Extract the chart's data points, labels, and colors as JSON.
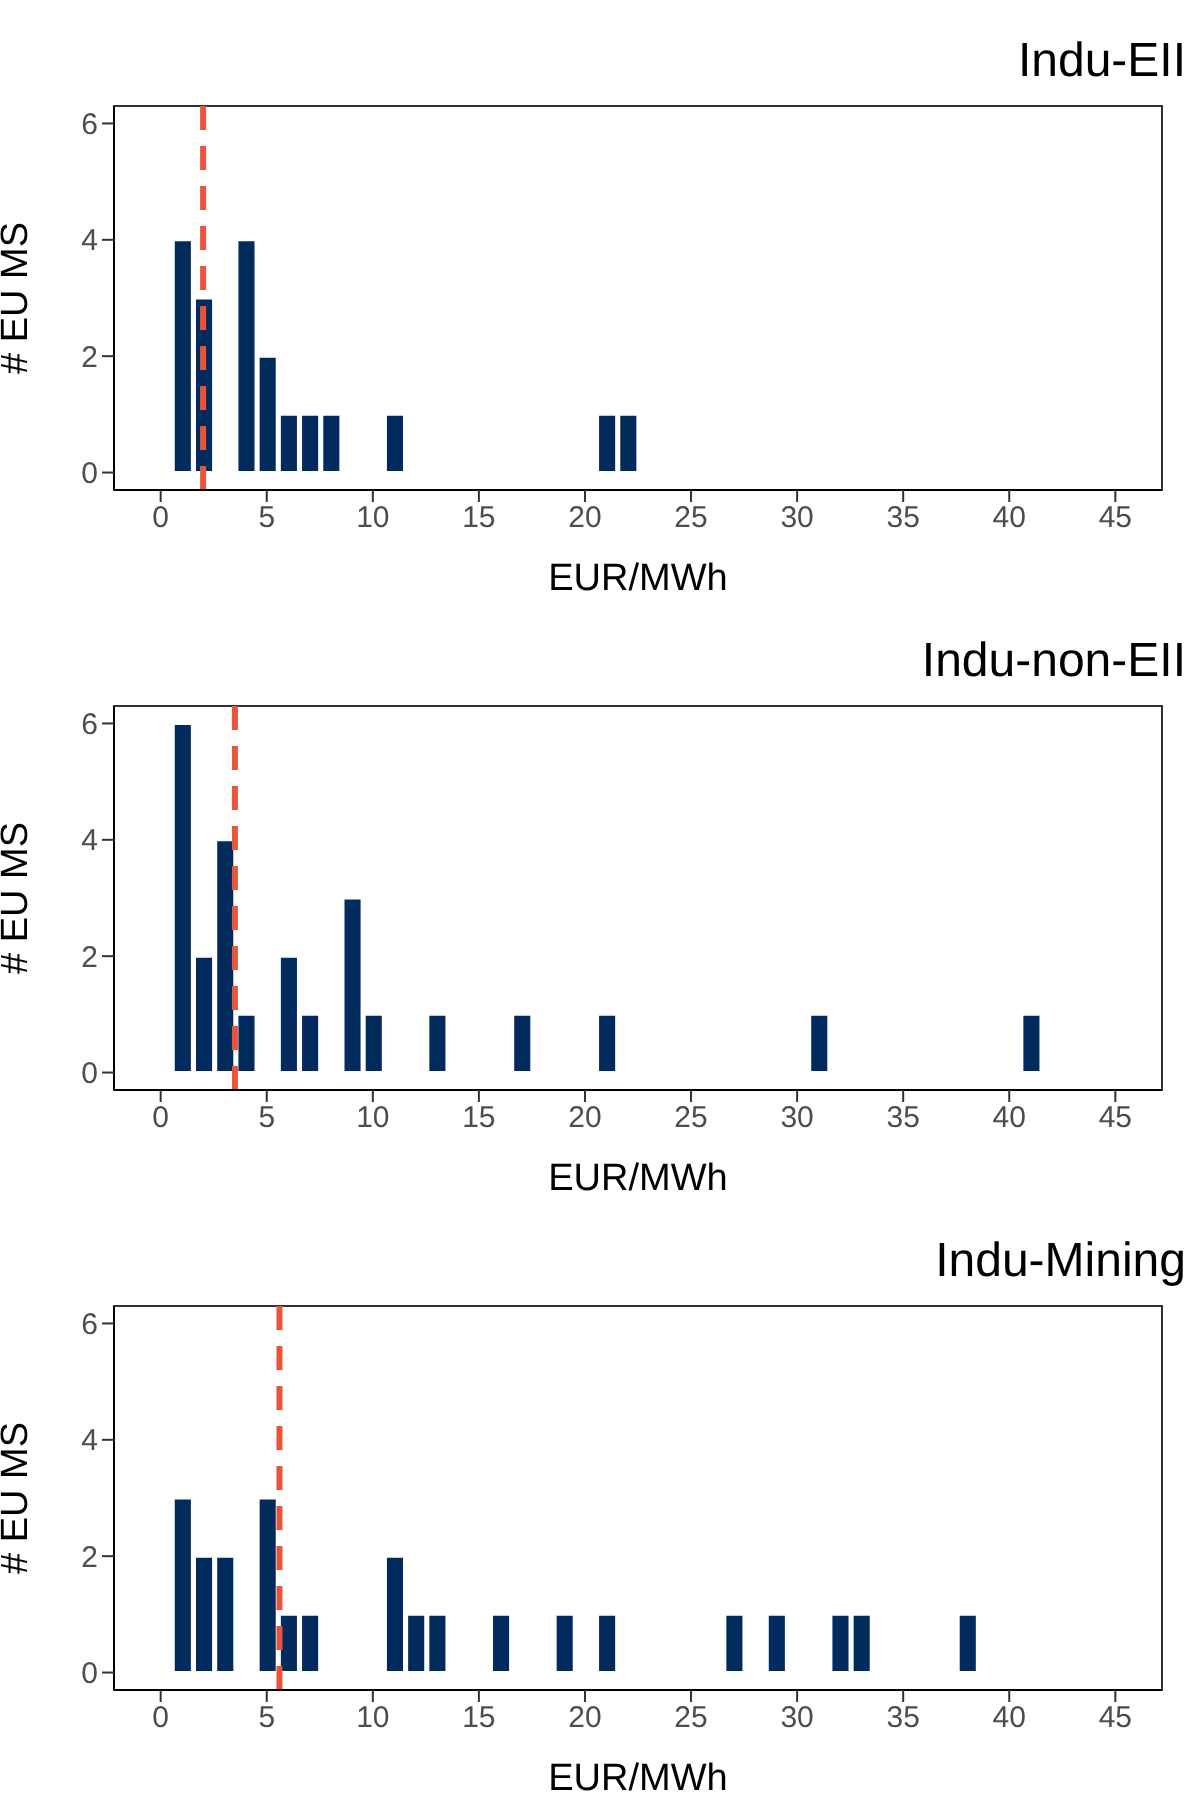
{
  "chart_data": [
    {
      "type": "histogram",
      "title": "Indu-EII",
      "xlabel": "EUR/MWh",
      "ylabel": "# EU MS",
      "bins": [
        0.5,
        1.5,
        2.5,
        3.5,
        4.5,
        5.5,
        6.5,
        7.5,
        8.5,
        9.5,
        10.5,
        11.5,
        12.5,
        13.5,
        14.5,
        15.5,
        16.5,
        17.5,
        18.5,
        19.5,
        20.5,
        21.5,
        22.5
      ],
      "values": [
        4,
        3,
        0,
        4,
        2,
        1,
        1,
        1,
        0,
        0,
        1,
        0,
        0,
        0,
        0,
        0,
        0,
        0,
        0,
        0,
        1,
        1
      ],
      "color": "#002b5c",
      "xlim": [
        -2.2,
        47.2
      ],
      "xticks": [
        0,
        5,
        10,
        15,
        20,
        25,
        30,
        35,
        40,
        45
      ],
      "ylim": [
        -0.3,
        6.3
      ],
      "yticks": [
        0,
        2,
        4,
        6
      ],
      "grid": false,
      "ref_lines": [
        {
          "axis": "x",
          "value": 2,
          "color": "#e8553b",
          "line_style": "dashed"
        }
      ]
    },
    {
      "type": "histogram",
      "title": "Indu-non-EII",
      "xlabel": "EUR/MWh",
      "ylabel": "# EU MS",
      "bins": [
        0.5,
        1.5,
        2.5,
        3.5,
        4.5,
        5.5,
        6.5,
        7.5,
        8.5,
        9.5,
        10.5,
        11.5,
        12.5,
        13.5,
        14.5,
        15.5,
        16.5,
        17.5,
        18.5,
        19.5,
        20.5,
        21.5,
        22.5,
        23.5,
        24.5,
        25.5,
        26.5,
        27.5,
        28.5,
        29.5,
        30.5,
        31.5,
        32.5,
        33.5,
        34.5,
        35.5,
        36.5,
        37.5,
        38.5,
        39.5,
        40.5,
        41.5
      ],
      "values": [
        6,
        2,
        4,
        1,
        0,
        2,
        1,
        0,
        3,
        1,
        0,
        0,
        1,
        0,
        0,
        0,
        1,
        0,
        0,
        0,
        1,
        0,
        0,
        0,
        0,
        0,
        0,
        0,
        0,
        0,
        1,
        0,
        0,
        0,
        0,
        0,
        0,
        0,
        0,
        0,
        1
      ],
      "color": "#002b5c",
      "xlim": [
        -2.2,
        47.2
      ],
      "xticks": [
        0,
        5,
        10,
        15,
        20,
        25,
        30,
        35,
        40,
        45
      ],
      "ylim": [
        -0.3,
        6.3
      ],
      "yticks": [
        0,
        2,
        4,
        6
      ],
      "grid": false,
      "ref_lines": [
        {
          "axis": "x",
          "value": 3.5,
          "color": "#e8553b",
          "line_style": "dashed"
        }
      ]
    },
    {
      "type": "histogram",
      "title": "Indu-Mining",
      "xlabel": "EUR/MWh",
      "ylabel": "# EU MS",
      "bins": [
        0.5,
        1.5,
        2.5,
        3.5,
        4.5,
        5.5,
        6.5,
        7.5,
        8.5,
        9.5,
        10.5,
        11.5,
        12.5,
        13.5,
        14.5,
        15.5,
        16.5,
        17.5,
        18.5,
        19.5,
        20.5,
        21.5,
        22.5,
        23.5,
        24.5,
        25.5,
        26.5,
        27.5,
        28.5,
        29.5,
        30.5,
        31.5,
        32.5,
        33.5,
        34.5,
        35.5,
        36.5,
        37.5,
        38.5
      ],
      "values": [
        3,
        2,
        2,
        0,
        3,
        1,
        1,
        0,
        0,
        0,
        2,
        1,
        1,
        0,
        0,
        1,
        0,
        0,
        1,
        0,
        1,
        0,
        0,
        0,
        0,
        0,
        1,
        0,
        1,
        0,
        0,
        1,
        1,
        0,
        0,
        0,
        0,
        1
      ],
      "color": "#002b5c",
      "xlim": [
        -2.2,
        47.2
      ],
      "xticks": [
        0,
        5,
        10,
        15,
        20,
        25,
        30,
        35,
        40,
        45
      ],
      "ylim": [
        -0.3,
        6.3
      ],
      "yticks": [
        0,
        2,
        4,
        6
      ],
      "grid": false,
      "ref_lines": [
        {
          "axis": "x",
          "value": 5.6,
          "color": "#e8553b",
          "line_style": "dashed"
        }
      ]
    }
  ]
}
